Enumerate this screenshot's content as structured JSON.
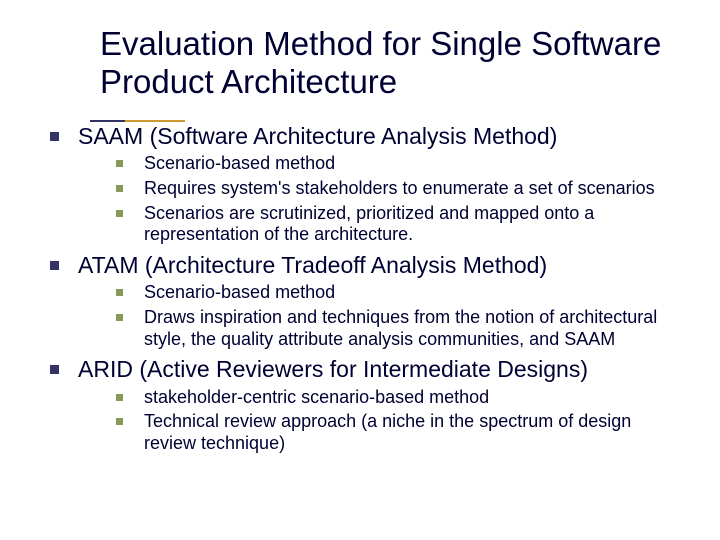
{
  "title": "Evaluation Method for Single Software Product Architecture",
  "colors": {
    "text": "#000033",
    "bullet_major": "#333366",
    "bullet_minor": "#889955",
    "underline_left": "#333366",
    "underline_right": "#cc9933",
    "background": "#ffffff"
  },
  "items": [
    {
      "label": "SAAM (Software Architecture Analysis Method)",
      "sub": [
        "Scenario-based method",
        "Requires system's stakeholders to enumerate a set of scenarios",
        "Scenarios are scrutinized, prioritized and mapped onto a representation of the architecture."
      ]
    },
    {
      "label": "ATAM (Architecture Tradeoff Analysis Method)",
      "sub": [
        "Scenario-based method",
        "Draws inspiration and techniques from the notion of architectural style, the quality attribute analysis communities, and SAAM"
      ]
    },
    {
      "label": "ARID (Active Reviewers for Intermediate Designs)",
      "sub": [
        "stakeholder-centric scenario-based method",
        "Technical review approach (a niche in the spectrum of design review technique)"
      ]
    }
  ]
}
